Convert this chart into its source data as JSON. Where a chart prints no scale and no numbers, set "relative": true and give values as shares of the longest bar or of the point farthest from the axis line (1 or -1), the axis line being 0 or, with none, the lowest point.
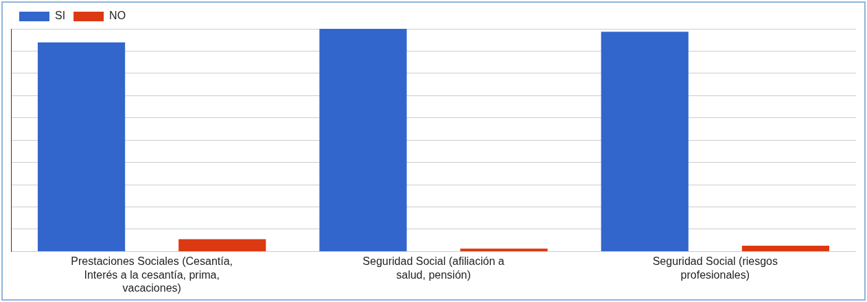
{
  "chart_data": {
    "type": "bar",
    "relative": true,
    "categories": [
      "Prestaciones Sociales (Cesantía, Interés a la cesantía, prima, vacaciones)",
      "Seguridad Social (afiliación a salud, pensión)",
      "Seguridad Social (riesgos profesionales)"
    ],
    "series": [
      {
        "name": "SI",
        "color": "#3366cc",
        "values": [
          0.939,
          1,
          0.987
        ]
      },
      {
        "name": "NO",
        "color": "#dc3912",
        "values": [
          0.055,
          0.013,
          0.026
        ]
      }
    ],
    "grid": "y",
    "legend": "top left"
  }
}
